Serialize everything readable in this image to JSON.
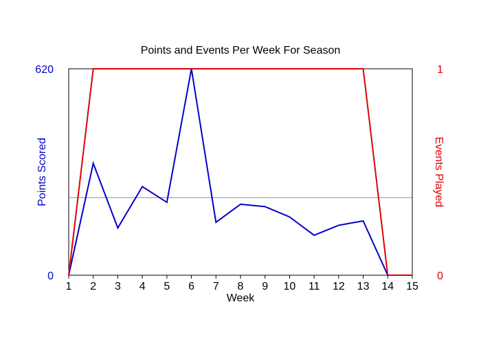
{
  "chart_data": {
    "type": "line",
    "title": "Points and Events Per Week For Season",
    "xlabel": "Week",
    "ylabel_left": "Points Scored",
    "ylabel_right": "Events Played",
    "x": [
      1,
      2,
      3,
      4,
      5,
      6,
      7,
      8,
      9,
      10,
      11,
      12,
      13,
      14,
      15
    ],
    "xlim": [
      1,
      15
    ],
    "ylim_left": [
      0,
      620
    ],
    "ylim_right": [
      0,
      1
    ],
    "yticks_left": [
      "0",
      "620"
    ],
    "yticks_right": [
      "0",
      "1"
    ],
    "reference_line_left": 233,
    "series": [
      {
        "name": "Points Scored",
        "axis": "left",
        "color": "#0000cc",
        "values": [
          0,
          336,
          142,
          266,
          219,
          620,
          159,
          213,
          206,
          175,
          120,
          150,
          163,
          0,
          0
        ]
      },
      {
        "name": "Events Played",
        "axis": "right",
        "color": "#dd0000",
        "values": [
          0,
          1,
          1,
          1,
          1,
          1,
          1,
          1,
          1,
          1,
          1,
          1,
          1,
          0,
          0
        ]
      }
    ],
    "colors": {
      "left_axis": "#0000cc",
      "right_axis": "#dd0000",
      "reference_line": "#8888bb"
    },
    "grid": false,
    "legend": "none"
  }
}
